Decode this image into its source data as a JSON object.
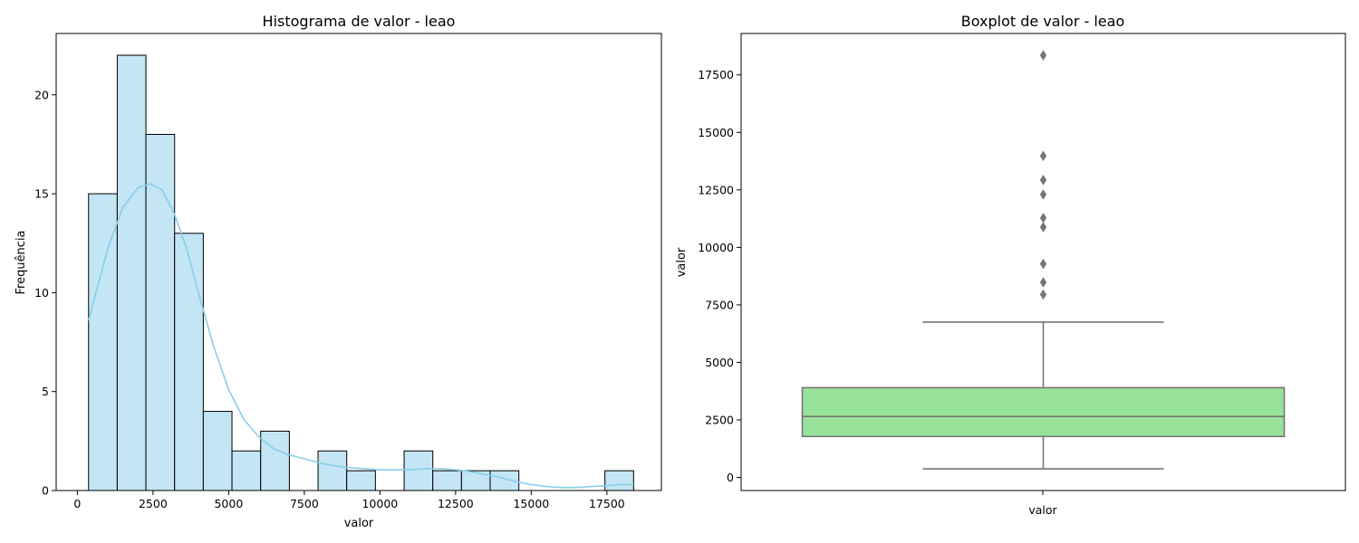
{
  "chart_data": [
    {
      "type": "histogram",
      "title": "Histograma de valor - leao",
      "xlabel": "valor",
      "ylabel": "Frequência",
      "xlim": [
        -700,
        19300
      ],
      "ylim": [
        0,
        23.1
      ],
      "xticks": [
        0,
        2500,
        5000,
        7500,
        10000,
        12500,
        15000,
        17500
      ],
      "yticks": [
        0,
        5,
        10,
        15,
        20
      ],
      "bin_edges": [
        370,
        1318,
        2266,
        3214,
        4162,
        5110,
        6058,
        7006,
        7954,
        8902,
        9850,
        10798,
        11746,
        12694,
        13642,
        14590,
        15538,
        16486,
        17434,
        18382
      ],
      "counts": [
        15,
        22,
        18,
        13,
        4,
        2,
        3,
        0,
        2,
        1,
        0,
        2,
        1,
        1,
        1,
        0,
        0,
        0,
        1
      ],
      "kde": {
        "x": [
          370,
          1000,
          1500,
          2000,
          2400,
          2800,
          3200,
          3600,
          4000,
          4500,
          5000,
          5500,
          6000,
          6500,
          7000,
          7500,
          8000,
          8500,
          9000,
          9500,
          10000,
          10500,
          11000,
          11500,
          12000,
          12500,
          13000,
          13500,
          14000,
          14500,
          15000,
          15500,
          16000,
          16500,
          17000,
          17500,
          18000,
          18382
        ],
        "y": [
          8.6,
          12.2,
          14.3,
          15.3,
          15.5,
          15.2,
          14.0,
          12.3,
          10.0,
          7.3,
          5.1,
          3.6,
          2.7,
          2.1,
          1.8,
          1.6,
          1.4,
          1.25,
          1.15,
          1.1,
          1.05,
          1.05,
          1.05,
          1.1,
          1.1,
          1.05,
          0.95,
          0.8,
          0.65,
          0.45,
          0.3,
          0.2,
          0.15,
          0.15,
          0.2,
          0.25,
          0.3,
          0.3
        ]
      },
      "colors": {
        "bar_fill": "#c3e5f4",
        "bar_edge": "#000000",
        "kde": "#87ceeb"
      }
    },
    {
      "type": "boxplot",
      "title": "Boxplot de valor - leao",
      "xlabel": "valor",
      "ylabel": "valor",
      "ylim": [
        -570,
        19300
      ],
      "yticks": [
        0,
        2500,
        5000,
        7500,
        10000,
        12500,
        15000,
        17500
      ],
      "box": {
        "whislo": 370,
        "q1": 1780,
        "median": 2650,
        "q3": 3900,
        "whishi": 6750
      },
      "outliers": [
        7950,
        8480,
        9280,
        10880,
        11280,
        12300,
        12930,
        13980,
        18350
      ],
      "colors": {
        "box_fill": "#98e39a",
        "line": "#767676",
        "outlier": "#767676"
      }
    }
  ]
}
